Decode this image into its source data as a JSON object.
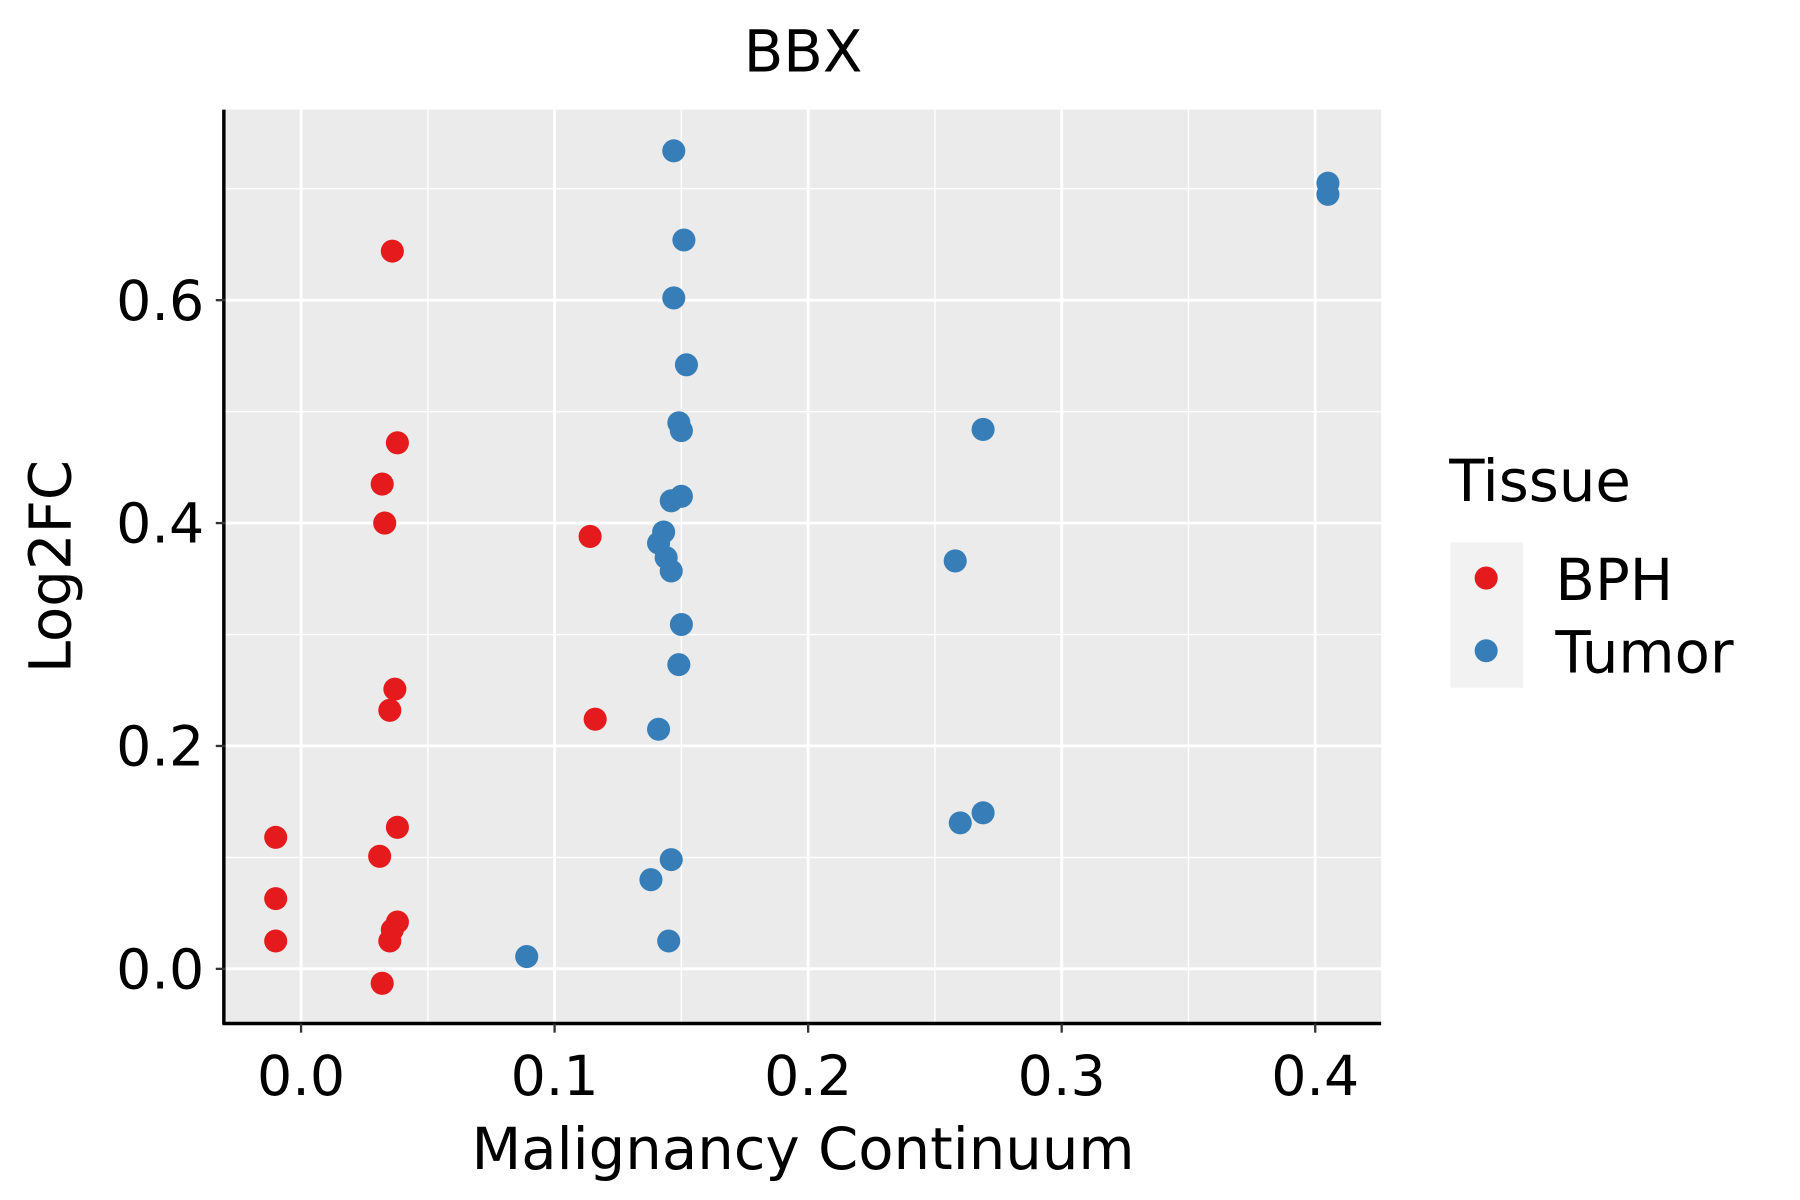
{
  "chart_data": {
    "type": "scatter",
    "title": "BBX",
    "xlabel": "Malignancy Continuum",
    "ylabel": "Log2FC",
    "xlim": [
      -0.03,
      0.426
    ],
    "ylim": [
      -0.049,
      0.771
    ],
    "xticks": [
      0.0,
      0.1,
      0.2,
      0.3,
      0.4
    ],
    "xtick_labels": [
      "0.0",
      "0.1",
      "0.2",
      "0.3",
      "0.4"
    ],
    "yticks": [
      0.0,
      0.2,
      0.4,
      0.6
    ],
    "ytick_labels": [
      "0.0",
      "0.2",
      "0.4",
      "0.6"
    ],
    "grid": true,
    "legend": {
      "title": "Tissue",
      "placement": "right",
      "entries": [
        "BPH",
        "Tumor"
      ]
    },
    "series": [
      {
        "name": "BPH",
        "color": "#E41A1C",
        "points": [
          [
            0.036,
            0.644
          ],
          [
            0.038,
            0.472
          ],
          [
            0.032,
            0.435
          ],
          [
            0.033,
            0.4
          ],
          [
            0.114,
            0.388
          ],
          [
            0.037,
            0.251
          ],
          [
            0.035,
            0.232
          ],
          [
            0.116,
            0.224
          ],
          [
            -0.01,
            0.118
          ],
          [
            0.038,
            0.127
          ],
          [
            0.031,
            0.101
          ],
          [
            -0.01,
            0.063
          ],
          [
            -0.01,
            0.025
          ],
          [
            0.038,
            0.042
          ],
          [
            0.036,
            0.035
          ],
          [
            0.035,
            0.025
          ],
          [
            0.032,
            -0.013
          ]
        ]
      },
      {
        "name": "Tumor",
        "color": "#377EB8",
        "points": [
          [
            0.147,
            0.734
          ],
          [
            0.405,
            0.705
          ],
          [
            0.405,
            0.695
          ],
          [
            0.151,
            0.654
          ],
          [
            0.147,
            0.602
          ],
          [
            0.152,
            0.542
          ],
          [
            0.149,
            0.49
          ],
          [
            0.15,
            0.483
          ],
          [
            0.269,
            0.484
          ],
          [
            0.15,
            0.424
          ],
          [
            0.146,
            0.42
          ],
          [
            0.143,
            0.392
          ],
          [
            0.141,
            0.382
          ],
          [
            0.144,
            0.369
          ],
          [
            0.146,
            0.357
          ],
          [
            0.258,
            0.366
          ],
          [
            0.15,
            0.309
          ],
          [
            0.149,
            0.273
          ],
          [
            0.141,
            0.215
          ],
          [
            0.269,
            0.14
          ],
          [
            0.26,
            0.131
          ],
          [
            0.146,
            0.098
          ],
          [
            0.138,
            0.08
          ],
          [
            0.145,
            0.025
          ],
          [
            0.089,
            0.011
          ]
        ]
      }
    ]
  }
}
